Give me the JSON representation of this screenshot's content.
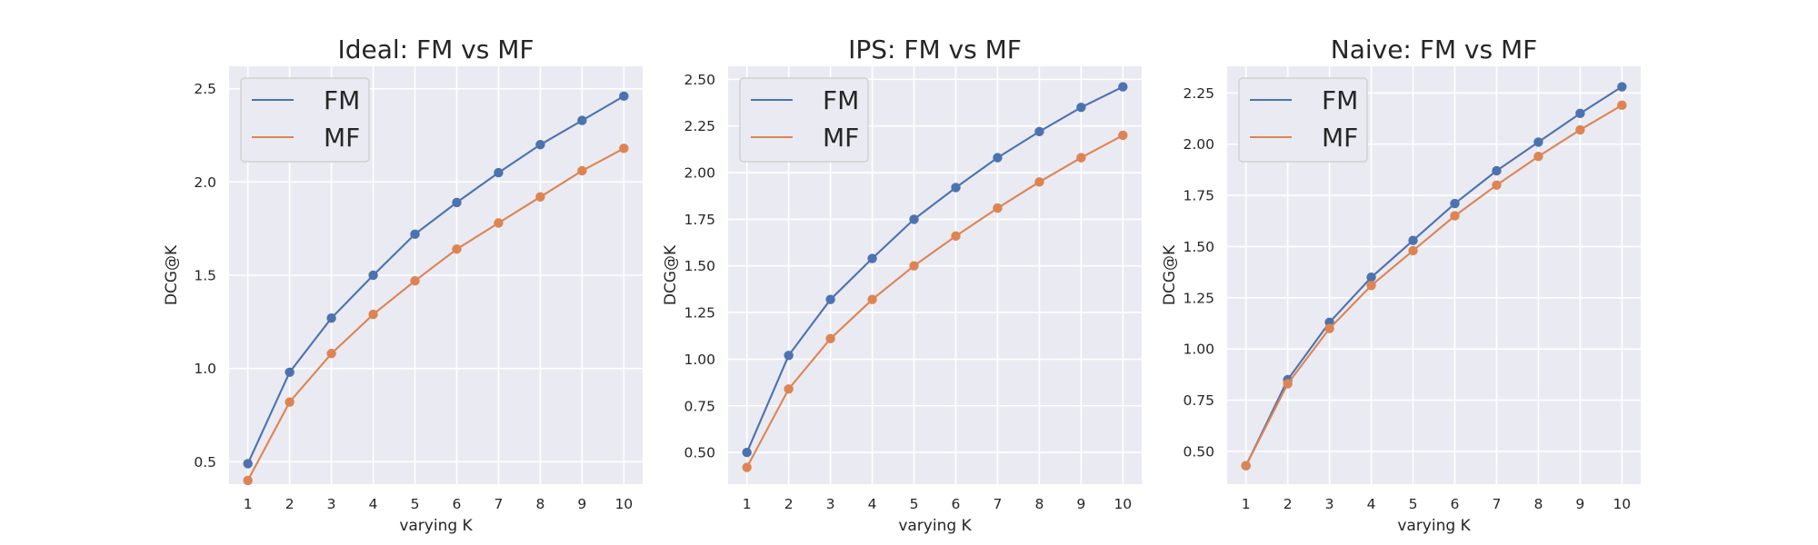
{
  "chart_data": [
    {
      "type": "line",
      "title": "Ideal: FM vs MF",
      "xlabel": "varying K",
      "ylabel": "DCG@K",
      "x": [
        1,
        2,
        3,
        4,
        5,
        6,
        7,
        8,
        9,
        10
      ],
      "ylim": [
        0.38,
        2.62
      ],
      "yticks": [
        0.5,
        1.0,
        1.5,
        2.0,
        2.5
      ],
      "ytick_labels": [
        "0.5",
        "1.0",
        "1.5",
        "2.0",
        "2.5"
      ],
      "grid": true,
      "legend": "top-left",
      "series": [
        {
          "name": "FM",
          "color": "#4c72b0",
          "values": [
            0.49,
            0.98,
            1.27,
            1.5,
            1.72,
            1.89,
            2.05,
            2.2,
            2.33,
            2.46
          ]
        },
        {
          "name": "MF",
          "color": "#dd8452",
          "values": [
            0.4,
            0.82,
            1.08,
            1.29,
            1.47,
            1.64,
            1.78,
            1.92,
            2.06,
            2.18
          ]
        }
      ]
    },
    {
      "type": "line",
      "title": "IPS: FM vs MF",
      "xlabel": "varying K",
      "ylabel": "DCG@K",
      "x": [
        1,
        2,
        3,
        4,
        5,
        6,
        7,
        8,
        9,
        10
      ],
      "ylim": [
        0.33,
        2.57
      ],
      "yticks": [
        0.5,
        0.75,
        1.0,
        1.25,
        1.5,
        1.75,
        2.0,
        2.25,
        2.5
      ],
      "ytick_labels": [
        "0.50",
        "0.75",
        "1.00",
        "1.25",
        "1.50",
        "1.75",
        "2.00",
        "2.25",
        "2.50"
      ],
      "grid": true,
      "legend": "top-left",
      "series": [
        {
          "name": "FM",
          "color": "#4c72b0",
          "values": [
            0.5,
            1.02,
            1.32,
            1.54,
            1.75,
            1.92,
            2.08,
            2.22,
            2.35,
            2.46
          ]
        },
        {
          "name": "MF",
          "color": "#dd8452",
          "values": [
            0.42,
            0.84,
            1.11,
            1.32,
            1.5,
            1.66,
            1.81,
            1.95,
            2.08,
            2.2
          ]
        }
      ]
    },
    {
      "type": "line",
      "title": "Naive: FM vs MF",
      "xlabel": "varying K",
      "ylabel": "DCG@K",
      "x": [
        1,
        2,
        3,
        4,
        5,
        6,
        7,
        8,
        9,
        10
      ],
      "ylim": [
        0.34,
        2.38
      ],
      "yticks": [
        0.5,
        0.75,
        1.0,
        1.25,
        1.5,
        1.75,
        2.0,
        2.25
      ],
      "ytick_labels": [
        "0.50",
        "0.75",
        "1.00",
        "1.25",
        "1.50",
        "1.75",
        "2.00",
        "2.25"
      ],
      "grid": true,
      "legend": "top-left",
      "series": [
        {
          "name": "FM",
          "color": "#4c72b0",
          "values": [
            0.43,
            0.85,
            1.13,
            1.35,
            1.53,
            1.71,
            1.87,
            2.01,
            2.15,
            2.28
          ]
        },
        {
          "name": "MF",
          "color": "#dd8452",
          "values": [
            0.43,
            0.83,
            1.1,
            1.31,
            1.48,
            1.65,
            1.8,
            1.94,
            2.07,
            2.19
          ]
        }
      ]
    }
  ]
}
